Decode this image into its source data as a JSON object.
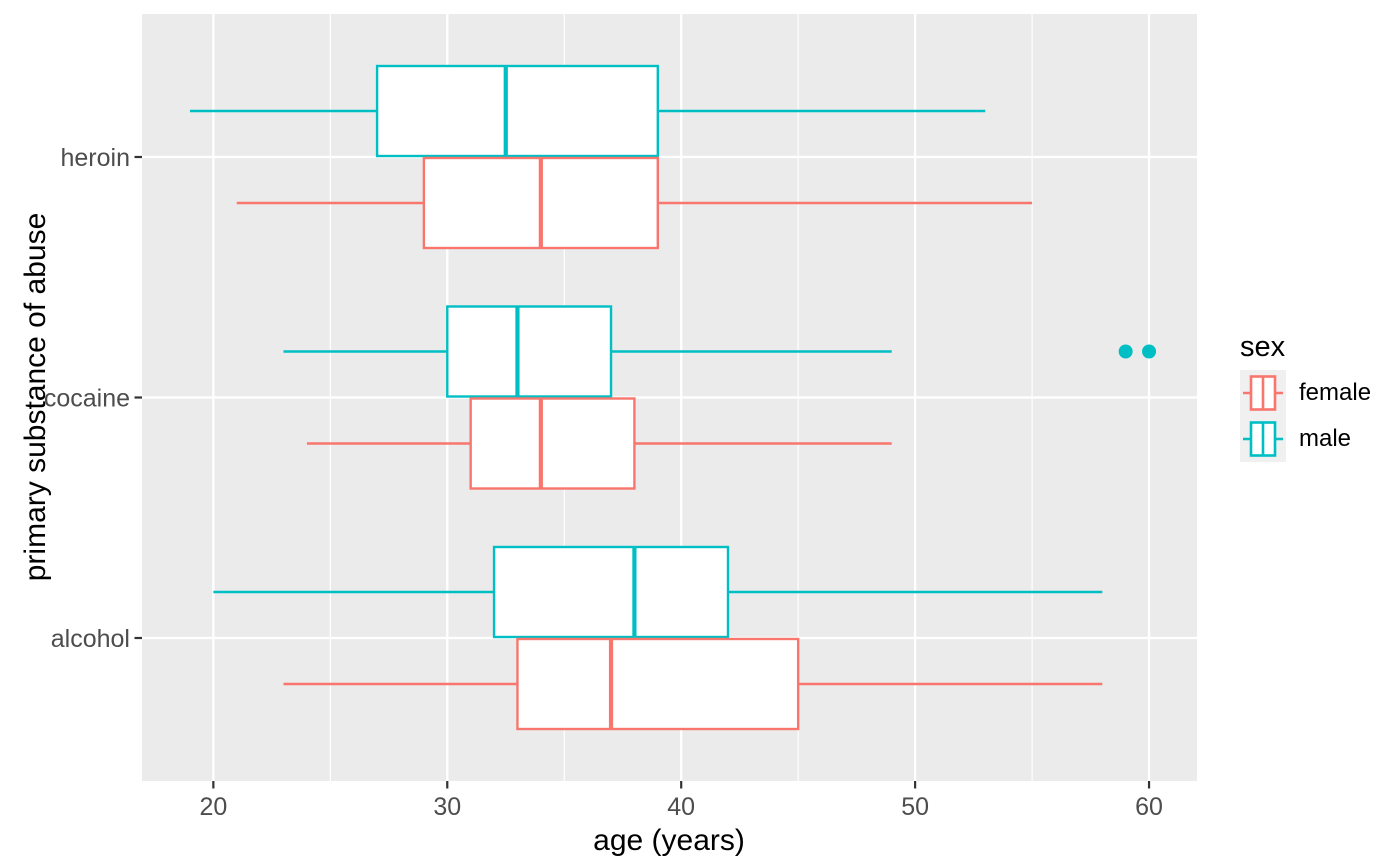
{
  "figure": {
    "x_axis": {
      "title": "age (years)",
      "tick_labels": [
        "20",
        "30",
        "40",
        "50",
        "60"
      ]
    },
    "y_axis": {
      "title": "primary substance of abuse",
      "tick_labels": [
        "heroin",
        "cocaine",
        "alcohol"
      ]
    },
    "legend": {
      "title": "sex",
      "items": [
        {
          "label": "female",
          "color": "#F8766D"
        },
        {
          "label": "male",
          "color": "#00BFC4"
        }
      ]
    }
  },
  "chart_data": {
    "type": "boxplot",
    "orientation": "horizontal",
    "title": "",
    "xlabel": "age (years)",
    "ylabel": "primary substance of abuse",
    "xlim": [
      16.95,
      62.05
    ],
    "x_major_ticks": [
      20,
      30,
      40,
      50,
      60
    ],
    "x_minor_ticks": [
      25,
      35,
      45,
      55
    ],
    "grid": "white major+minor vertical gridlines and major horizontal gridlines on grey panel",
    "categories": [
      "heroin",
      "cocaine",
      "alcohol"
    ],
    "legend_title": "sex",
    "legend_position": "right-middle",
    "series": [
      {
        "name": "male",
        "color": "#00BFC4",
        "dodge": "above",
        "boxes": [
          {
            "category": "heroin",
            "whisker_low": 19,
            "q1": 27,
            "median": 32.5,
            "q3": 39,
            "whisker_high": 53,
            "outliers": []
          },
          {
            "category": "cocaine",
            "whisker_low": 23,
            "q1": 30,
            "median": 33,
            "q3": 37,
            "whisker_high": 49,
            "outliers": [
              59,
              60
            ]
          },
          {
            "category": "alcohol",
            "whisker_low": 20,
            "q1": 32,
            "median": 38,
            "q3": 42,
            "whisker_high": 58,
            "outliers": []
          }
        ]
      },
      {
        "name": "female",
        "color": "#F8766D",
        "dodge": "below",
        "boxes": [
          {
            "category": "heroin",
            "whisker_low": 21,
            "q1": 29,
            "median": 34,
            "q3": 39,
            "whisker_high": 55,
            "outliers": []
          },
          {
            "category": "cocaine",
            "whisker_low": 24,
            "q1": 31,
            "median": 34,
            "q3": 38,
            "whisker_high": 49,
            "outliers": []
          },
          {
            "category": "alcohol",
            "whisker_low": 23,
            "q1": 33,
            "median": 37,
            "q3": 45,
            "whisker_high": 58,
            "outliers": []
          }
        ]
      }
    ],
    "style": {
      "panel_bg": "#EBEBEB",
      "grid_color": "#FFFFFF",
      "box_fill": "#FFFFFF",
      "axis_text_color": "#4D4D4D",
      "axis_title_color": "#000000",
      "tick_color": "#333333",
      "legend_key_bg": "#F0F0F0"
    }
  }
}
